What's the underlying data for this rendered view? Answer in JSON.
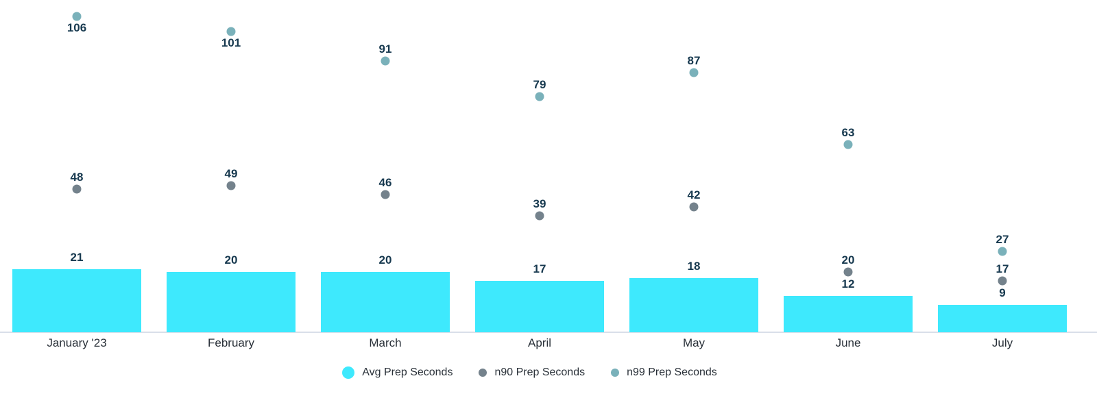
{
  "chart_data": {
    "type": "bar",
    "title": "",
    "categories": [
      "January '23",
      "February",
      "March",
      "April",
      "May",
      "June",
      "July"
    ],
    "series": [
      {
        "name": "Avg Prep Seconds",
        "type": "bar",
        "color": "#3EE9FD",
        "values": [
          21,
          20,
          20,
          17,
          18,
          12,
          9
        ]
      },
      {
        "name": "n90 Prep Seconds",
        "type": "scatter",
        "color": "#74828C",
        "values": [
          48,
          49,
          46,
          39,
          42,
          20,
          17
        ]
      },
      {
        "name": "n99 Prep Seconds",
        "type": "scatter",
        "color": "#7AB1BA",
        "values": [
          106,
          101,
          91,
          79,
          87,
          63,
          27
        ]
      }
    ],
    "value_labels": true,
    "ylim": [
      0,
      112
    ],
    "grid": false,
    "legend_position": "bottom",
    "colors": {
      "value_label": "#17394F",
      "axis_line": "#D9DFE9",
      "axis_label": "#2A3139"
    }
  }
}
